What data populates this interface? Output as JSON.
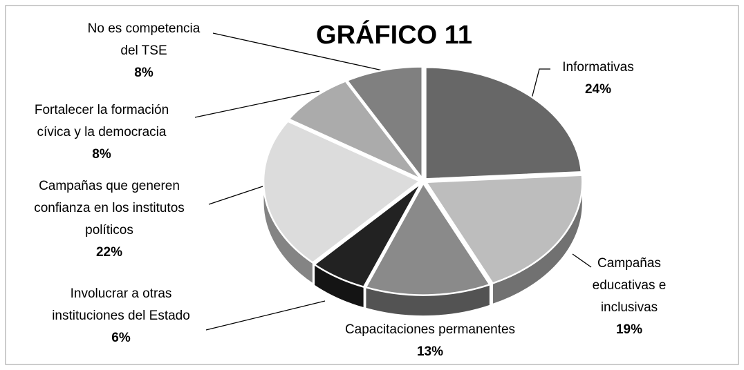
{
  "chart_data": {
    "type": "pie",
    "title": "GRÁFICO 11",
    "categories": [
      "Informativas",
      "Campañas educativas e inclusivas",
      "Capacitaciones permanentes",
      "Involucrar a otras instituciones del Estado",
      "Campañas que generen confianza en los institutos políticos",
      "Fortalecer la formación cívica y la democracia",
      "No es competencia del TSE"
    ],
    "values": [
      24,
      19,
      13,
      6,
      22,
      8,
      8
    ],
    "value_labels": [
      "24%",
      "19%",
      "13%",
      "6%",
      "22%",
      "8%",
      "8%"
    ],
    "colors": [
      "#676767",
      "#bdbdbd",
      "#8a8a8a",
      "#222222",
      "#dcdcdc",
      "#ababab",
      "#808080"
    ]
  }
}
